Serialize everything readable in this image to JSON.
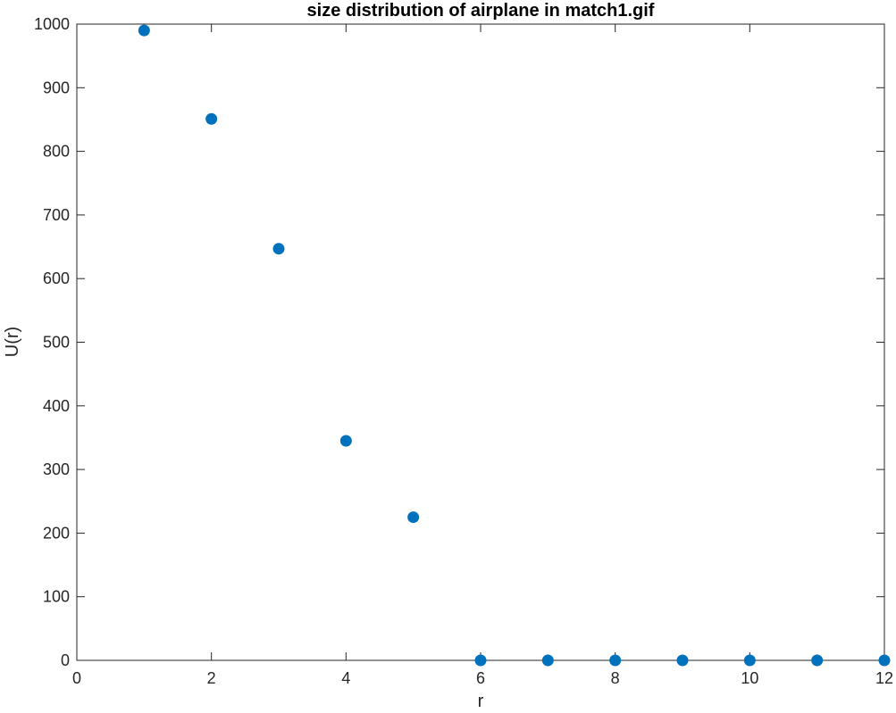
{
  "chart_data": {
    "type": "scatter",
    "title": "size distribution of airplane in match1.gif",
    "xlabel": "r",
    "ylabel": "U(r)",
    "xlim": [
      0,
      12
    ],
    "ylim": [
      0,
      1000
    ],
    "x_ticks": [
      0,
      2,
      4,
      6,
      8,
      10,
      12
    ],
    "y_ticks": [
      0,
      100,
      200,
      300,
      400,
      500,
      600,
      700,
      800,
      900,
      1000
    ],
    "grid": false,
    "box": true,
    "marker": "filled-circle",
    "marker_color": "#0072BD",
    "series": [
      {
        "x": [
          1,
          2,
          3,
          4,
          5,
          6,
          7,
          8,
          9,
          10,
          11,
          12
        ],
        "y": [
          990,
          851,
          647,
          345,
          225,
          0,
          0,
          0,
          0,
          0,
          0,
          0
        ]
      }
    ]
  }
}
